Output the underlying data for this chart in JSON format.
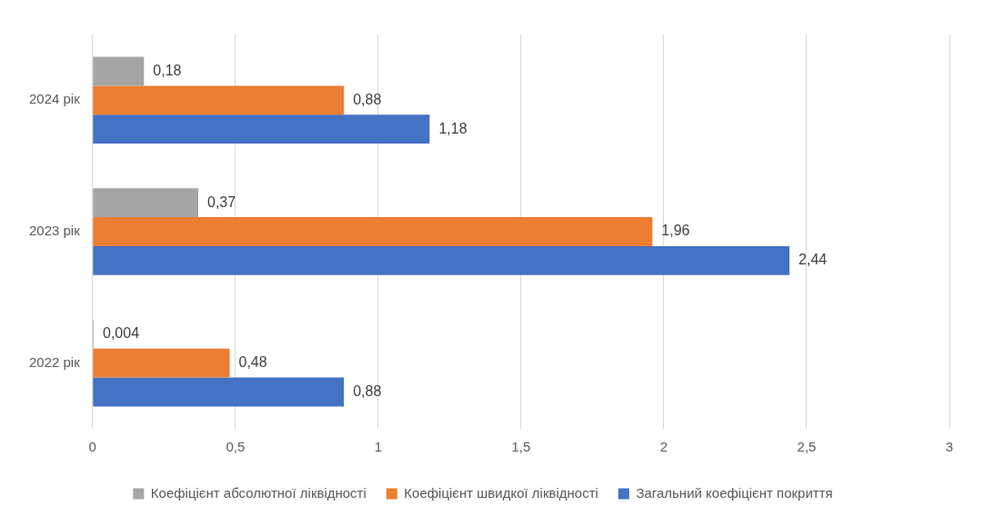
{
  "chart_data": {
    "type": "bar",
    "orientation": "horizontal",
    "categories": [
      "2024 рік",
      "2023 рік",
      "2022 рік"
    ],
    "series": [
      {
        "name": "Коефіцієнт абсолютної ліквідності",
        "color": "#a5a5a5",
        "values": [
          0.18,
          0.37,
          0.004
        ],
        "value_labels": [
          "0,18",
          "0,37",
          "0,004"
        ]
      },
      {
        "name": "Коефіцієнт швидкої ліквідності",
        "color": "#ed7d31",
        "values": [
          0.88,
          1.96,
          0.48
        ],
        "value_labels": [
          "0,88",
          "1,96",
          "0,48"
        ]
      },
      {
        "name": "Загальний коефіцієнт покриття",
        "color": "#4472c4",
        "values": [
          1.18,
          2.44,
          0.88
        ],
        "value_labels": [
          "1,18",
          "2,44",
          "0,88"
        ]
      }
    ],
    "xlim": [
      0,
      3
    ],
    "xticks": [
      0,
      {
        "value": 0.5,
        "label": "0,5"
      },
      1,
      {
        "value": 1.5,
        "label": "1,5"
      },
      2,
      {
        "value": 2.5,
        "label": "2,5"
      },
      3
    ],
    "grid": "x",
    "legend": "bottom"
  }
}
